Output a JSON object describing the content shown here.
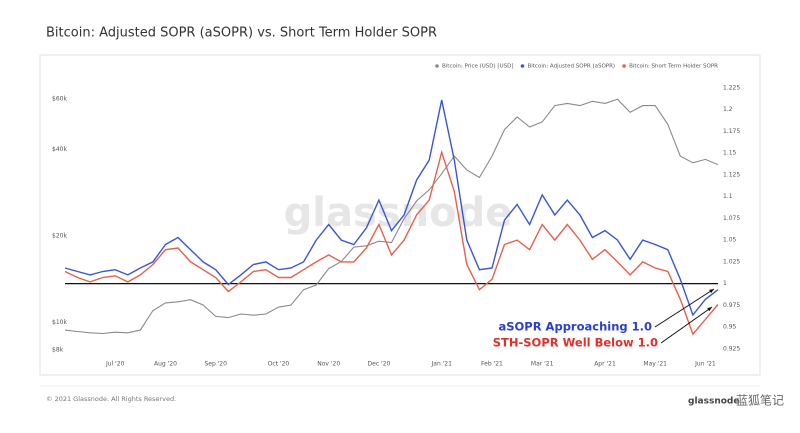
{
  "chart_data": {
    "type": "line",
    "title": "Bitcoin: Adjusted SOPR (aSOPR) vs. Short Term Holder SOPR",
    "watermark": "glassnode",
    "legend": "top-right",
    "log_scale_y": true,
    "categories": [
      null,
      null,
      null,
      null,
      "Jul '20",
      null,
      null,
      null,
      "Aug '20",
      null,
      null,
      null,
      "Sep '20",
      null,
      null,
      null,
      null,
      "Oct '20",
      null,
      null,
      null,
      "Nov '20",
      null,
      null,
      null,
      "Dec '20",
      null,
      null,
      null,
      null,
      "Jan '21",
      null,
      null,
      null,
      "Feb '21",
      null,
      null,
      null,
      "Mar '21",
      null,
      null,
      null,
      null,
      "Apr '21",
      null,
      null,
      null,
      "May '21",
      null,
      null,
      null,
      "Jun '21",
      null
    ],
    "series": [
      {
        "name": "Bitcoin: Price (USD) [USD]",
        "color": "#8a8a8a",
        "axis": "y",
        "values": [
          9400,
          9300,
          9200,
          9150,
          9250,
          9200,
          9400,
          11000,
          11700,
          11800,
          12000,
          11500,
          10500,
          10400,
          10700,
          10600,
          10700,
          11300,
          11500,
          13000,
          13500,
          15400,
          16300,
          18300,
          18500,
          19200,
          19000,
          23000,
          26500,
          29000,
          33000,
          38000,
          34000,
          32000,
          38000,
          47000,
          52000,
          48000,
          50000,
          57000,
          58000,
          57000,
          59000,
          58000,
          60000,
          54000,
          57000,
          57000,
          49000,
          38000,
          36000,
          37000,
          35500
        ]
      },
      {
        "name": "Bitcoin: Adjusted SOPR (aSOPR)",
        "color": "#3a55d6",
        "axis": "y2",
        "values": [
          1.018,
          1.014,
          1.01,
          1.014,
          1.016,
          1.01,
          1.018,
          1.025,
          1.045,
          1.053,
          1.039,
          1.025,
          1.016,
          0.999,
          1.01,
          1.022,
          1.025,
          1.016,
          1.018,
          1.025,
          1.05,
          1.068,
          1.05,
          1.045,
          1.064,
          1.096,
          1.061,
          1.079,
          1.119,
          1.142,
          1.211,
          1.142,
          1.05,
          1.016,
          1.018,
          1.073,
          1.091,
          1.068,
          1.102,
          1.079,
          1.096,
          1.079,
          1.053,
          1.061,
          1.05,
          1.028,
          1.05,
          1.045,
          1.039,
          1.005,
          0.964,
          0.982,
          0.993
        ]
      },
      {
        "name": "Bitcoin: Short Term Holder SOPR",
        "color": "#e8604c",
        "axis": "y2",
        "values": [
          1.014,
          1.007,
          1.002,
          1.007,
          1.009,
          1.002,
          1.01,
          1.022,
          1.039,
          1.041,
          1.025,
          1.016,
          1.007,
          0.991,
          1.002,
          1.014,
          1.016,
          1.007,
          1.007,
          1.016,
          1.025,
          1.033,
          1.025,
          1.025,
          1.041,
          1.068,
          1.033,
          1.05,
          1.079,
          1.096,
          1.151,
          1.106,
          1.022,
          0.993,
          1.005,
          1.045,
          1.05,
          1.039,
          1.068,
          1.05,
          1.068,
          1.05,
          1.028,
          1.039,
          1.025,
          1.01,
          1.025,
          1.018,
          1.014,
          0.982,
          0.942,
          0.959,
          0.976
        ]
      }
    ],
    "ylim": [
      7700,
      70000
    ],
    "yticks": [
      {
        "value": 8000,
        "label": "$8k"
      },
      {
        "value": 10000,
        "label": "$10k"
      },
      {
        "value": 20000,
        "label": "$20k"
      },
      {
        "value": 40000,
        "label": "$40k"
      },
      {
        "value": 60000,
        "label": "$60k"
      }
    ],
    "y2lim": [
      0.918,
      1.234
    ],
    "y2ticks": [
      0.925,
      0.95,
      0.975,
      1,
      1.025,
      1.05,
      1.075,
      1.1,
      1.125,
      1.15,
      1.175,
      1.2,
      1.225
    ],
    "reference_line": 1,
    "annotations": [
      {
        "text": "aSOPR Approaching 1.0",
        "color": "#2a3fd0"
      },
      {
        "text": "STH-SOPR Well Below 1.0",
        "color": "#e0302a"
      }
    ]
  },
  "footer": "© 2021 Glassnode. All Rights Reserved.",
  "logo": "glassnode",
  "corner_watermark": "蓝狐笔记"
}
